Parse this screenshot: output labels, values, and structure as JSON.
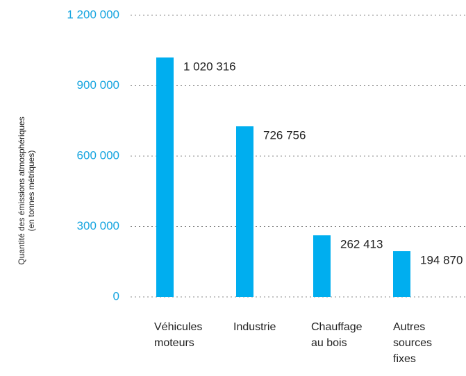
{
  "chart_data": {
    "type": "bar",
    "ylabel": [
      "Quantité des émissions atmosphériques",
      "(en tonnes métriques)"
    ],
    "categories": [
      "Véhicules moteurs",
      "Industrie",
      "Chauffage au bois",
      "Autres sources fixes"
    ],
    "values": [
      1020316,
      726756,
      262413,
      194870
    ],
    "value_labels": [
      "1 020 316",
      "726 756",
      "262 413",
      "194 870"
    ],
    "color": "#00aeef",
    "ylim": [
      0,
      1200000
    ],
    "yticks": [
      0,
      {
        "value": 300000,
        "label": "300 000"
      },
      {
        "value": 600000,
        "label": "600 000"
      },
      {
        "value": 900000,
        "label": "900 000"
      },
      {
        "value": 1200000,
        "label": "1 200 000"
      }
    ],
    "grid": true
  }
}
